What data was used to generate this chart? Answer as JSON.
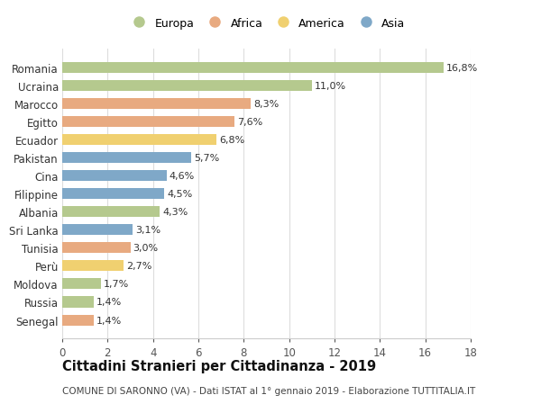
{
  "categories": [
    "Senegal",
    "Russia",
    "Moldova",
    "Perù",
    "Tunisia",
    "Sri Lanka",
    "Albania",
    "Filippine",
    "Cina",
    "Pakistan",
    "Ecuador",
    "Egitto",
    "Marocco",
    "Ucraina",
    "Romania"
  ],
  "values": [
    1.4,
    1.4,
    1.7,
    2.7,
    3.0,
    3.1,
    4.3,
    4.5,
    4.6,
    5.7,
    6.8,
    7.6,
    8.3,
    11.0,
    16.8
  ],
  "labels": [
    "1,4%",
    "1,4%",
    "1,7%",
    "2,7%",
    "3,0%",
    "3,1%",
    "4,3%",
    "4,5%",
    "4,6%",
    "5,7%",
    "6,8%",
    "7,6%",
    "8,3%",
    "11,0%",
    "16,8%"
  ],
  "continents": [
    "Africa",
    "Europa",
    "Europa",
    "America",
    "Africa",
    "Asia",
    "Europa",
    "Asia",
    "Asia",
    "Asia",
    "America",
    "Africa",
    "Africa",
    "Europa",
    "Europa"
  ],
  "colors": {
    "Europa": "#b5c98e",
    "Africa": "#e8aa80",
    "America": "#f0d070",
    "Asia": "#7fa8c8"
  },
  "legend_order": [
    "Europa",
    "Africa",
    "America",
    "Asia"
  ],
  "title": "Cittadini Stranieri per Cittadinanza - 2019",
  "subtitle": "COMUNE DI SARONNO (VA) - Dati ISTAT al 1° gennaio 2019 - Elaborazione TUTTITALIA.IT",
  "xlim": [
    0,
    18
  ],
  "xticks": [
    0,
    2,
    4,
    6,
    8,
    10,
    12,
    14,
    16,
    18
  ],
  "background_color": "#ffffff",
  "bar_height": 0.6,
  "label_fontsize": 8,
  "tick_fontsize": 8.5,
  "ytick_fontsize": 8.5,
  "title_fontsize": 10.5,
  "subtitle_fontsize": 7.5,
  "legend_fontsize": 9
}
